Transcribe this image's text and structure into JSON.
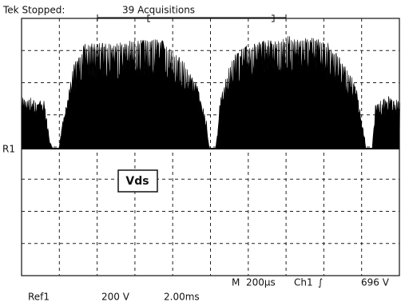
{
  "header": {
    "status": "Tek Stopped:",
    "acquisitions": "39 Acquisitions"
  },
  "screen": {
    "reference_marker": "R1",
    "trace_label": "Vds"
  },
  "readout": {
    "mode": "M",
    "timebase": "200µs",
    "channel": "Ch1",
    "trigger_slope": "∫",
    "trigger_level": "696 V"
  },
  "footer": {
    "reference": "Ref1",
    "volts_per_div": "200 V",
    "time_per_div": "2.00ms"
  }
}
